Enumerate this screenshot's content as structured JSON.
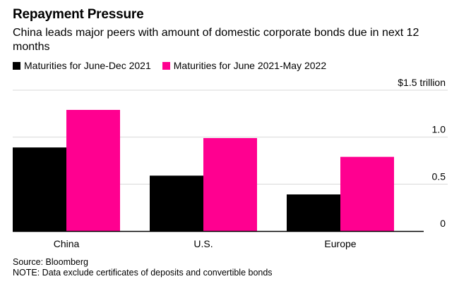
{
  "title": "Repayment Pressure",
  "subtitle": "China leads major peers with amount of domestic corporate bonds due in next 12 months",
  "source": "Source: Bloomberg",
  "note": "NOTE: Data exclude certificates of deposits and convertible bonds",
  "colors": {
    "series1": "#000000",
    "series2": "#ff0090",
    "grid": "#d8d8d8",
    "axis": "#000000"
  },
  "chart_data": {
    "type": "bar",
    "categories": [
      "China",
      "U.S.",
      "Europe"
    ],
    "series": [
      {
        "name": "Maturities for June-Dec 2021",
        "values": [
          0.89,
          0.59,
          0.39
        ]
      },
      {
        "name": "Maturities for June 2021-May 2022",
        "values": [
          1.29,
          0.99,
          0.79
        ]
      }
    ],
    "yticks": [
      {
        "value": 0,
        "label": "0"
      },
      {
        "value": 0.5,
        "label": "0.5"
      },
      {
        "value": 1.0,
        "label": "1.0"
      },
      {
        "value": 1.5,
        "label": "$1.5 trillion"
      }
    ],
    "ylim": [
      0,
      1.5
    ],
    "grid": true,
    "legend_position": "top-left"
  }
}
